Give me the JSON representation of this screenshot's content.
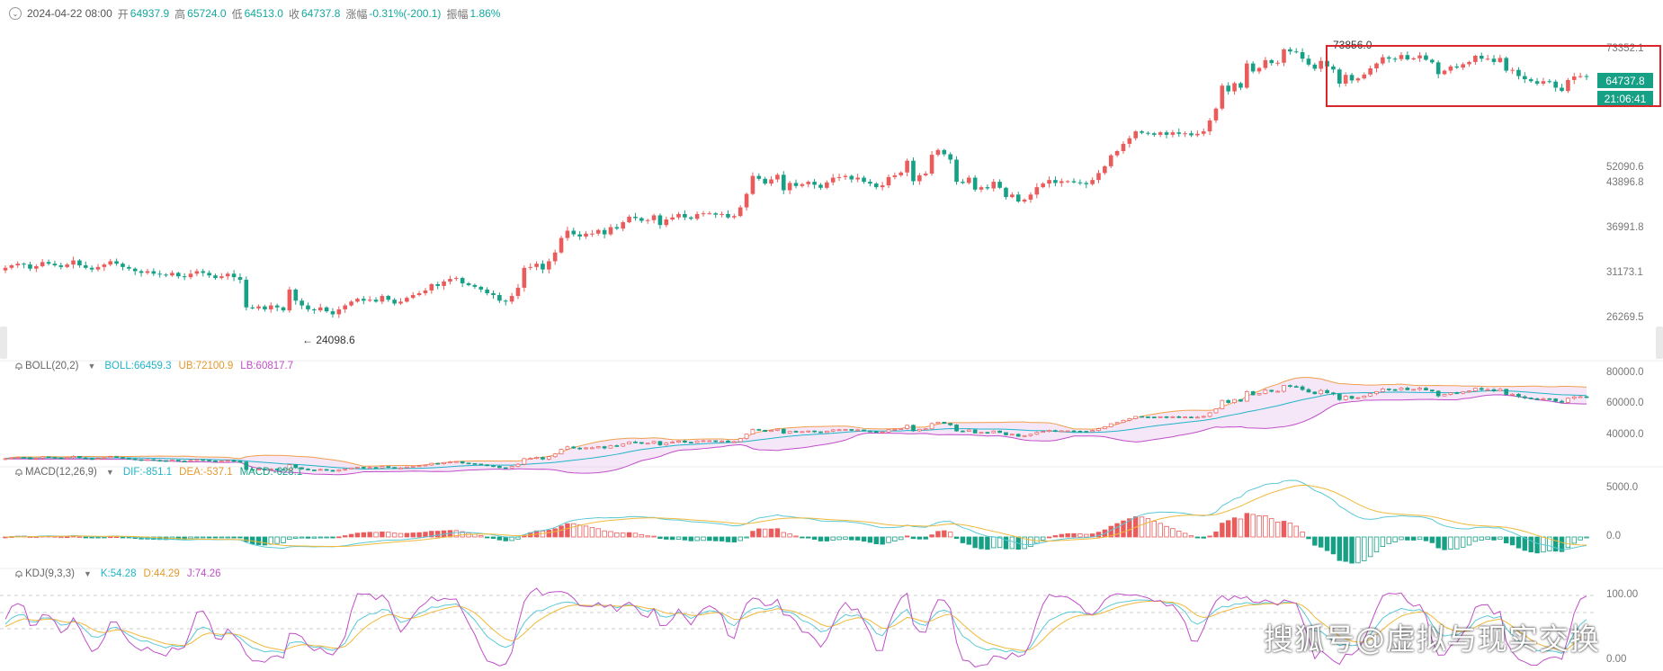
{
  "header": {
    "datetime": "2024-04-22 08:00",
    "open_label": "开",
    "open": "64937.9",
    "high_label": "高",
    "high": "65724.0",
    "low_label": "低",
    "low": "64513.0",
    "close_label": "收",
    "close": "64737.8",
    "change_label": "涨幅",
    "change": "-0.31%(-200.1)",
    "amplitude_label": "振幅",
    "amplitude": "1.86%"
  },
  "boll": {
    "name": "BOLL(20,2)",
    "boll": "BOLL:66459.3",
    "ub": "UB:72100.9",
    "lb": "LB:60817.7"
  },
  "macd": {
    "name": "MACD(12,26,9)",
    "dif": "DIF:-851.1",
    "dea": "DEA:-537.1",
    "macd": "MACD:-628.1"
  },
  "kdj": {
    "name": "KDJ(9,3,3)",
    "k": "K:54.28",
    "d": "D:44.29",
    "j": "J:74.26"
  },
  "price_axis": [
    "73352.1",
    "52090.6",
    "43896.8",
    "36991.8",
    "31173.1",
    "26269.5"
  ],
  "boll_axis": [
    "80000.0",
    "60000.0",
    "40000.0"
  ],
  "macd_axis": [
    "5000.0",
    "0.0"
  ],
  "kdj_axis": [
    "100.00",
    "0.00"
  ],
  "current_price": "64737.8",
  "countdown": "21:06:41",
  "high_marker": "73856.0",
  "low_marker": "← 24098.6",
  "watermark": "搜狐号@虚拟与现实交换",
  "colors": {
    "up": "#ea5c5c",
    "down": "#16a085",
    "boll_mid": "#21b5c9",
    "boll_ub": "#f0a04b",
    "boll_lb": "#c04fc8",
    "dif": "#5bc8d6",
    "dea": "#f0b93b",
    "k": "#5bc8d6",
    "d": "#f0b93b",
    "j": "#c04fc8",
    "highlight": "#d9262c"
  },
  "chart_data": {
    "type": "candlestick",
    "price_ylim": [
      22000,
      76000
    ],
    "closes": [
      30500,
      30800,
      31000,
      30900,
      30400,
      30700,
      31200,
      31000,
      30800,
      30600,
      30900,
      31400,
      30800,
      30500,
      30300,
      30600,
      30900,
      31300,
      31000,
      30600,
      30400,
      30100,
      29900,
      30100,
      29800,
      29700,
      29600,
      29900,
      29500,
      29400,
      29800,
      30100,
      29900,
      29600,
      29300,
      29500,
      29800,
      29400,
      29100,
      26100,
      26000,
      26200,
      25900,
      26300,
      26100,
      25800,
      28000,
      26800,
      26300,
      25900,
      25800,
      26100,
      25700,
      25400,
      25900,
      26300,
      26700,
      27000,
      26800,
      26900,
      26700,
      27300,
      26900,
      26500,
      26700,
      27100,
      27400,
      27600,
      27900,
      28600,
      28400,
      28900,
      29200,
      29300,
      28700,
      28500,
      28300,
      28000,
      27600,
      27400,
      26800,
      26700,
      27300,
      28200,
      30500,
      30600,
      31000,
      30300,
      31300,
      32400,
      34300,
      35300,
      34800,
      34500,
      34900,
      34900,
      35400,
      34800,
      35800,
      35600,
      36500,
      37300,
      37100,
      36700,
      36800,
      37500,
      36100,
      36900,
      37200,
      37700,
      37200,
      37000,
      37700,
      37800,
      37800,
      37600,
      37700,
      37200,
      37400,
      38700,
      40800,
      43800,
      43300,
      42500,
      43200,
      44000,
      41400,
      42600,
      42100,
      42400,
      42800,
      42300,
      41800,
      42700,
      43500,
      43600,
      43800,
      43200,
      43500,
      42800,
      42500,
      41900,
      42200,
      43600,
      43900,
      44400,
      46500,
      42900,
      43900,
      44200,
      47600,
      48500,
      47700,
      46700,
      42800,
      42600,
      43500,
      41500,
      41900,
      41700,
      42800,
      41800,
      40300,
      40700,
      39600,
      39900,
      40700,
      41900,
      42500,
      43100,
      42600,
      42900,
      42900,
      42700,
      42600,
      42400,
      43100,
      44300,
      45500,
      47500,
      48300,
      49700,
      50800,
      52200,
      51900,
      51800,
      51500,
      52000,
      51500,
      52000,
      51700,
      51800,
      51400,
      51700,
      52200,
      54500,
      57100,
      62500,
      61100,
      63100,
      62000,
      68200,
      66100,
      67000,
      69100,
      68300,
      68400,
      72100,
      71500,
      71300,
      69500,
      67900,
      66800,
      68900,
      67400,
      66600,
      63000,
      65200,
      63800,
      64300,
      65300,
      66900,
      68200,
      69900,
      69500,
      69400,
      70500,
      69300,
      69600,
      70400,
      69200,
      68500,
      65400,
      66300,
      67400,
      67100,
      68000,
      68600,
      70300,
      69500,
      69500,
      68600,
      69700,
      66300,
      66500,
      64900,
      64100,
      63600,
      63000,
      63600,
      63500,
      62000,
      61200,
      63900,
      64800,
      64900,
      64700
    ]
  }
}
